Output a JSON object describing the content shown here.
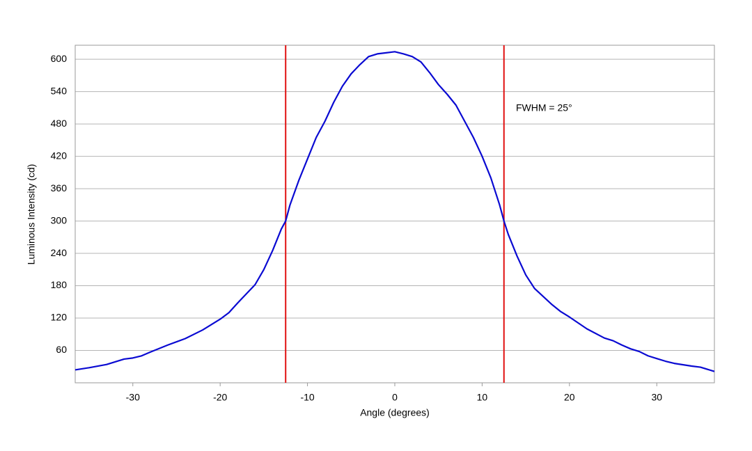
{
  "chart_data": {
    "type": "line",
    "x_label": "Angle (degrees)",
    "y_label": "Luminous Intensity (cd)",
    "annotation": "FWHM = 25°",
    "x": [
      -36.6,
      -35,
      -33,
      -31,
      -30,
      -29,
      -28,
      -26,
      -24,
      -22,
      -20,
      -19,
      -18,
      -16,
      -15,
      -14,
      -13,
      -12.5,
      -12,
      -11,
      -10,
      -9,
      -8,
      -7,
      -6,
      -5,
      -4,
      -3,
      -2,
      -1,
      0,
      1,
      2,
      3,
      4,
      5,
      6,
      7,
      8,
      9,
      10,
      11,
      12,
      12.5,
      13,
      14,
      15,
      16,
      17,
      18,
      19,
      20,
      22,
      24,
      25,
      26,
      27,
      28,
      29,
      30,
      31,
      32,
      34,
      35,
      36.6
    ],
    "series": [
      {
        "color": "#0a0ad2",
        "values": [
          24,
          28,
          34,
          44,
          46,
          50,
          57,
          70,
          82,
          98,
          118,
          130,
          148,
          182,
          210,
          245,
          285,
          300,
          330,
          375,
          415,
          455,
          485,
          520,
          550,
          573,
          590,
          605,
          610,
          612,
          614,
          610,
          605,
          595,
          575,
          553,
          535,
          515,
          485,
          455,
          420,
          380,
          330,
          300,
          275,
          235,
          200,
          175,
          160,
          145,
          132,
          122,
          100,
          83,
          78,
          70,
          63,
          58,
          50,
          45,
          40,
          36,
          31,
          29,
          21
        ]
      }
    ],
    "vlines": [
      -12.5,
      12.5
    ],
    "vline_color": "#e01010",
    "xlim": [
      -36.6,
      36.6
    ],
    "ylim": [
      0,
      626
    ],
    "xticks": [
      -30,
      -20,
      -10,
      0,
      10,
      20,
      30
    ],
    "yticks": [
      60,
      120,
      180,
      240,
      300,
      360,
      420,
      480,
      540,
      600
    ],
    "grid": true
  }
}
